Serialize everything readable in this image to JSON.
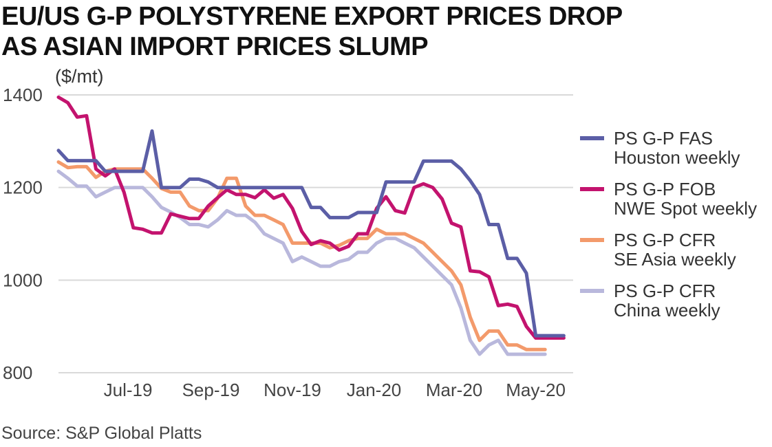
{
  "title": {
    "line1": "EU/US G-P POLYSTYRENE EXPORT PRICES DROP",
    "line2": "AS ASIAN IMPORT PRICES SLUMP"
  },
  "source": "Source: S&P Global Platts",
  "chart_data": {
    "type": "line",
    "ylabel": "($/mt)",
    "ylim": [
      800,
      1400
    ],
    "yticks": [
      800,
      1000,
      1200,
      1400
    ],
    "xlim": [
      "2019-05-10",
      "2020-05-29"
    ],
    "xticks": [
      {
        "date": "2019-07-01",
        "label": "Jul-19"
      },
      {
        "date": "2019-09-01",
        "label": "Sep-19"
      },
      {
        "date": "2019-11-01",
        "label": "Nov-19"
      },
      {
        "date": "2020-01-01",
        "label": "Jan-20"
      },
      {
        "date": "2020-03-01",
        "label": "Mar-20"
      },
      {
        "date": "2020-05-01",
        "label": "May-20"
      }
    ],
    "grid": "horizontal",
    "legend_position": "right",
    "series": [
      {
        "name_lines": [
          "PS G-P FAS",
          "Houston weekly"
        ],
        "color": "#5b5ea6",
        "points": [
          [
            "2019-05-10",
            1280
          ],
          [
            "2019-05-17",
            1258
          ],
          [
            "2019-05-24",
            1258
          ],
          [
            "2019-05-31",
            1258
          ],
          [
            "2019-06-07",
            1258
          ],
          [
            "2019-06-14",
            1235
          ],
          [
            "2019-06-21",
            1235
          ],
          [
            "2019-06-28",
            1235
          ],
          [
            "2019-07-05",
            1235
          ],
          [
            "2019-07-12",
            1235
          ],
          [
            "2019-07-19",
            1322
          ],
          [
            "2019-07-26",
            1200
          ],
          [
            "2019-08-02",
            1200
          ],
          [
            "2019-08-09",
            1200
          ],
          [
            "2019-08-16",
            1218
          ],
          [
            "2019-08-23",
            1218
          ],
          [
            "2019-08-30",
            1212
          ],
          [
            "2019-09-06",
            1200
          ],
          [
            "2019-09-13",
            1200
          ],
          [
            "2019-09-20",
            1200
          ],
          [
            "2019-09-27",
            1200
          ],
          [
            "2019-10-04",
            1200
          ],
          [
            "2019-10-11",
            1200
          ],
          [
            "2019-10-18",
            1200
          ],
          [
            "2019-10-25",
            1200
          ],
          [
            "2019-11-01",
            1200
          ],
          [
            "2019-11-08",
            1200
          ],
          [
            "2019-11-15",
            1157
          ],
          [
            "2019-11-22",
            1157
          ],
          [
            "2019-11-29",
            1135
          ],
          [
            "2019-12-06",
            1135
          ],
          [
            "2019-12-13",
            1135
          ],
          [
            "2019-12-20",
            1146
          ],
          [
            "2019-12-27",
            1146
          ],
          [
            "2020-01-03",
            1146
          ],
          [
            "2020-01-10",
            1212
          ],
          [
            "2020-01-17",
            1212
          ],
          [
            "2020-01-24",
            1212
          ],
          [
            "2020-01-31",
            1212
          ],
          [
            "2020-02-07",
            1257
          ],
          [
            "2020-02-14",
            1257
          ],
          [
            "2020-02-21",
            1257
          ],
          [
            "2020-02-28",
            1257
          ],
          [
            "2020-03-06",
            1240
          ],
          [
            "2020-03-13",
            1215
          ],
          [
            "2020-03-20",
            1185
          ],
          [
            "2020-03-27",
            1120
          ],
          [
            "2020-04-03",
            1120
          ],
          [
            "2020-04-10",
            1047
          ],
          [
            "2020-04-17",
            1047
          ],
          [
            "2020-04-24",
            1015
          ],
          [
            "2020-05-01",
            880
          ],
          [
            "2020-05-08",
            880
          ],
          [
            "2020-05-15",
            880
          ],
          [
            "2020-05-22",
            880
          ]
        ]
      },
      {
        "name_lines": [
          "PS G-P FOB",
          "NWE Spot weekly"
        ],
        "color": "#c3136e",
        "points": [
          [
            "2019-05-10",
            1395
          ],
          [
            "2019-05-17",
            1383
          ],
          [
            "2019-05-24",
            1352
          ],
          [
            "2019-05-31",
            1355
          ],
          [
            "2019-06-07",
            1240
          ],
          [
            "2019-06-14",
            1225
          ],
          [
            "2019-06-21",
            1240
          ],
          [
            "2019-06-28",
            1190
          ],
          [
            "2019-07-05",
            1113
          ],
          [
            "2019-07-12",
            1110
          ],
          [
            "2019-07-19",
            1102
          ],
          [
            "2019-07-26",
            1102
          ],
          [
            "2019-08-02",
            1143
          ],
          [
            "2019-08-09",
            1138
          ],
          [
            "2019-08-16",
            1133
          ],
          [
            "2019-08-23",
            1133
          ],
          [
            "2019-08-30",
            1160
          ],
          [
            "2019-09-06",
            1178
          ],
          [
            "2019-09-13",
            1195
          ],
          [
            "2019-09-20",
            1185
          ],
          [
            "2019-09-27",
            1185
          ],
          [
            "2019-10-04",
            1178
          ],
          [
            "2019-10-11",
            1195
          ],
          [
            "2019-10-18",
            1177
          ],
          [
            "2019-10-25",
            1185
          ],
          [
            "2019-11-01",
            1155
          ],
          [
            "2019-11-08",
            1105
          ],
          [
            "2019-11-15",
            1077
          ],
          [
            "2019-11-22",
            1085
          ],
          [
            "2019-11-29",
            1080
          ],
          [
            "2019-12-06",
            1065
          ],
          [
            "2019-12-13",
            1073
          ],
          [
            "2019-12-20",
            1100
          ],
          [
            "2019-12-27",
            1100
          ],
          [
            "2020-01-03",
            1155
          ],
          [
            "2020-01-10",
            1180
          ],
          [
            "2020-01-17",
            1150
          ],
          [
            "2020-01-24",
            1145
          ],
          [
            "2020-01-31",
            1200
          ],
          [
            "2020-02-07",
            1208
          ],
          [
            "2020-02-14",
            1200
          ],
          [
            "2020-02-21",
            1175
          ],
          [
            "2020-02-28",
            1123
          ],
          [
            "2020-03-06",
            1115
          ],
          [
            "2020-03-13",
            1020
          ],
          [
            "2020-03-20",
            1018
          ],
          [
            "2020-03-27",
            1007
          ],
          [
            "2020-04-03",
            945
          ],
          [
            "2020-04-10",
            948
          ],
          [
            "2020-04-17",
            943
          ],
          [
            "2020-04-24",
            900
          ],
          [
            "2020-05-01",
            875
          ],
          [
            "2020-05-08",
            875
          ],
          [
            "2020-05-15",
            875
          ],
          [
            "2020-05-22",
            875
          ]
        ]
      },
      {
        "name_lines": [
          "PS G-P CFR",
          "SE Asia weekly"
        ],
        "color": "#f39a6b",
        "points": [
          [
            "2019-05-10",
            1255
          ],
          [
            "2019-05-17",
            1243
          ],
          [
            "2019-05-24",
            1245
          ],
          [
            "2019-05-31",
            1245
          ],
          [
            "2019-06-07",
            1222
          ],
          [
            "2019-06-14",
            1235
          ],
          [
            "2019-06-21",
            1240
          ],
          [
            "2019-06-28",
            1240
          ],
          [
            "2019-07-05",
            1240
          ],
          [
            "2019-07-12",
            1240
          ],
          [
            "2019-07-19",
            1220
          ],
          [
            "2019-07-26",
            1198
          ],
          [
            "2019-08-02",
            1190
          ],
          [
            "2019-08-09",
            1190
          ],
          [
            "2019-08-16",
            1160
          ],
          [
            "2019-08-23",
            1150
          ],
          [
            "2019-08-30",
            1150
          ],
          [
            "2019-09-06",
            1177
          ],
          [
            "2019-09-13",
            1220
          ],
          [
            "2019-09-20",
            1220
          ],
          [
            "2019-09-27",
            1160
          ],
          [
            "2019-10-04",
            1140
          ],
          [
            "2019-10-11",
            1140
          ],
          [
            "2019-10-18",
            1130
          ],
          [
            "2019-10-25",
            1120
          ],
          [
            "2019-11-01",
            1080
          ],
          [
            "2019-11-08",
            1080
          ],
          [
            "2019-11-15",
            1080
          ],
          [
            "2019-11-22",
            1080
          ],
          [
            "2019-11-29",
            1070
          ],
          [
            "2019-12-06",
            1075
          ],
          [
            "2019-12-13",
            1085
          ],
          [
            "2019-12-20",
            1090
          ],
          [
            "2019-12-27",
            1090
          ],
          [
            "2020-01-03",
            1110
          ],
          [
            "2020-01-10",
            1100
          ],
          [
            "2020-01-17",
            1100
          ],
          [
            "2020-01-24",
            1100
          ],
          [
            "2020-01-31",
            1090
          ],
          [
            "2020-02-07",
            1080
          ],
          [
            "2020-02-14",
            1060
          ],
          [
            "2020-02-21",
            1040
          ],
          [
            "2020-02-28",
            1020
          ],
          [
            "2020-03-06",
            990
          ],
          [
            "2020-03-13",
            920
          ],
          [
            "2020-03-20",
            870
          ],
          [
            "2020-03-27",
            890
          ],
          [
            "2020-04-03",
            890
          ],
          [
            "2020-04-10",
            860
          ],
          [
            "2020-04-17",
            860
          ],
          [
            "2020-04-24",
            850
          ],
          [
            "2020-05-01",
            850
          ],
          [
            "2020-05-08",
            850
          ]
        ]
      },
      {
        "name_lines": [
          "PS G-P CFR",
          "China weekly"
        ],
        "color": "#b9b8dc",
        "points": [
          [
            "2019-05-10",
            1235
          ],
          [
            "2019-05-17",
            1220
          ],
          [
            "2019-05-24",
            1203
          ],
          [
            "2019-05-31",
            1203
          ],
          [
            "2019-06-07",
            1180
          ],
          [
            "2019-06-14",
            1190
          ],
          [
            "2019-06-21",
            1200
          ],
          [
            "2019-06-28",
            1200
          ],
          [
            "2019-07-05",
            1200
          ],
          [
            "2019-07-12",
            1200
          ],
          [
            "2019-07-19",
            1180
          ],
          [
            "2019-07-26",
            1157
          ],
          [
            "2019-08-02",
            1147
          ],
          [
            "2019-08-09",
            1135
          ],
          [
            "2019-08-16",
            1120
          ],
          [
            "2019-08-23",
            1120
          ],
          [
            "2019-08-30",
            1115
          ],
          [
            "2019-09-06",
            1130
          ],
          [
            "2019-09-13",
            1150
          ],
          [
            "2019-09-20",
            1140
          ],
          [
            "2019-09-27",
            1140
          ],
          [
            "2019-10-04",
            1125
          ],
          [
            "2019-10-11",
            1100
          ],
          [
            "2019-10-18",
            1090
          ],
          [
            "2019-10-25",
            1080
          ],
          [
            "2019-11-01",
            1040
          ],
          [
            "2019-11-08",
            1050
          ],
          [
            "2019-11-15",
            1040
          ],
          [
            "2019-11-22",
            1030
          ],
          [
            "2019-11-29",
            1030
          ],
          [
            "2019-12-06",
            1040
          ],
          [
            "2019-12-13",
            1045
          ],
          [
            "2019-12-20",
            1060
          ],
          [
            "2019-12-27",
            1060
          ],
          [
            "2020-01-03",
            1080
          ],
          [
            "2020-01-10",
            1090
          ],
          [
            "2020-01-17",
            1090
          ],
          [
            "2020-01-24",
            1080
          ],
          [
            "2020-01-31",
            1070
          ],
          [
            "2020-02-07",
            1050
          ],
          [
            "2020-02-14",
            1030
          ],
          [
            "2020-02-21",
            1010
          ],
          [
            "2020-02-28",
            990
          ],
          [
            "2020-03-06",
            940
          ],
          [
            "2020-03-13",
            870
          ],
          [
            "2020-03-20",
            840
          ],
          [
            "2020-03-27",
            860
          ],
          [
            "2020-04-03",
            870
          ],
          [
            "2020-04-10",
            840
          ],
          [
            "2020-04-17",
            840
          ],
          [
            "2020-04-24",
            840
          ],
          [
            "2020-05-01",
            840
          ],
          [
            "2020-05-08",
            840
          ]
        ]
      }
    ]
  }
}
